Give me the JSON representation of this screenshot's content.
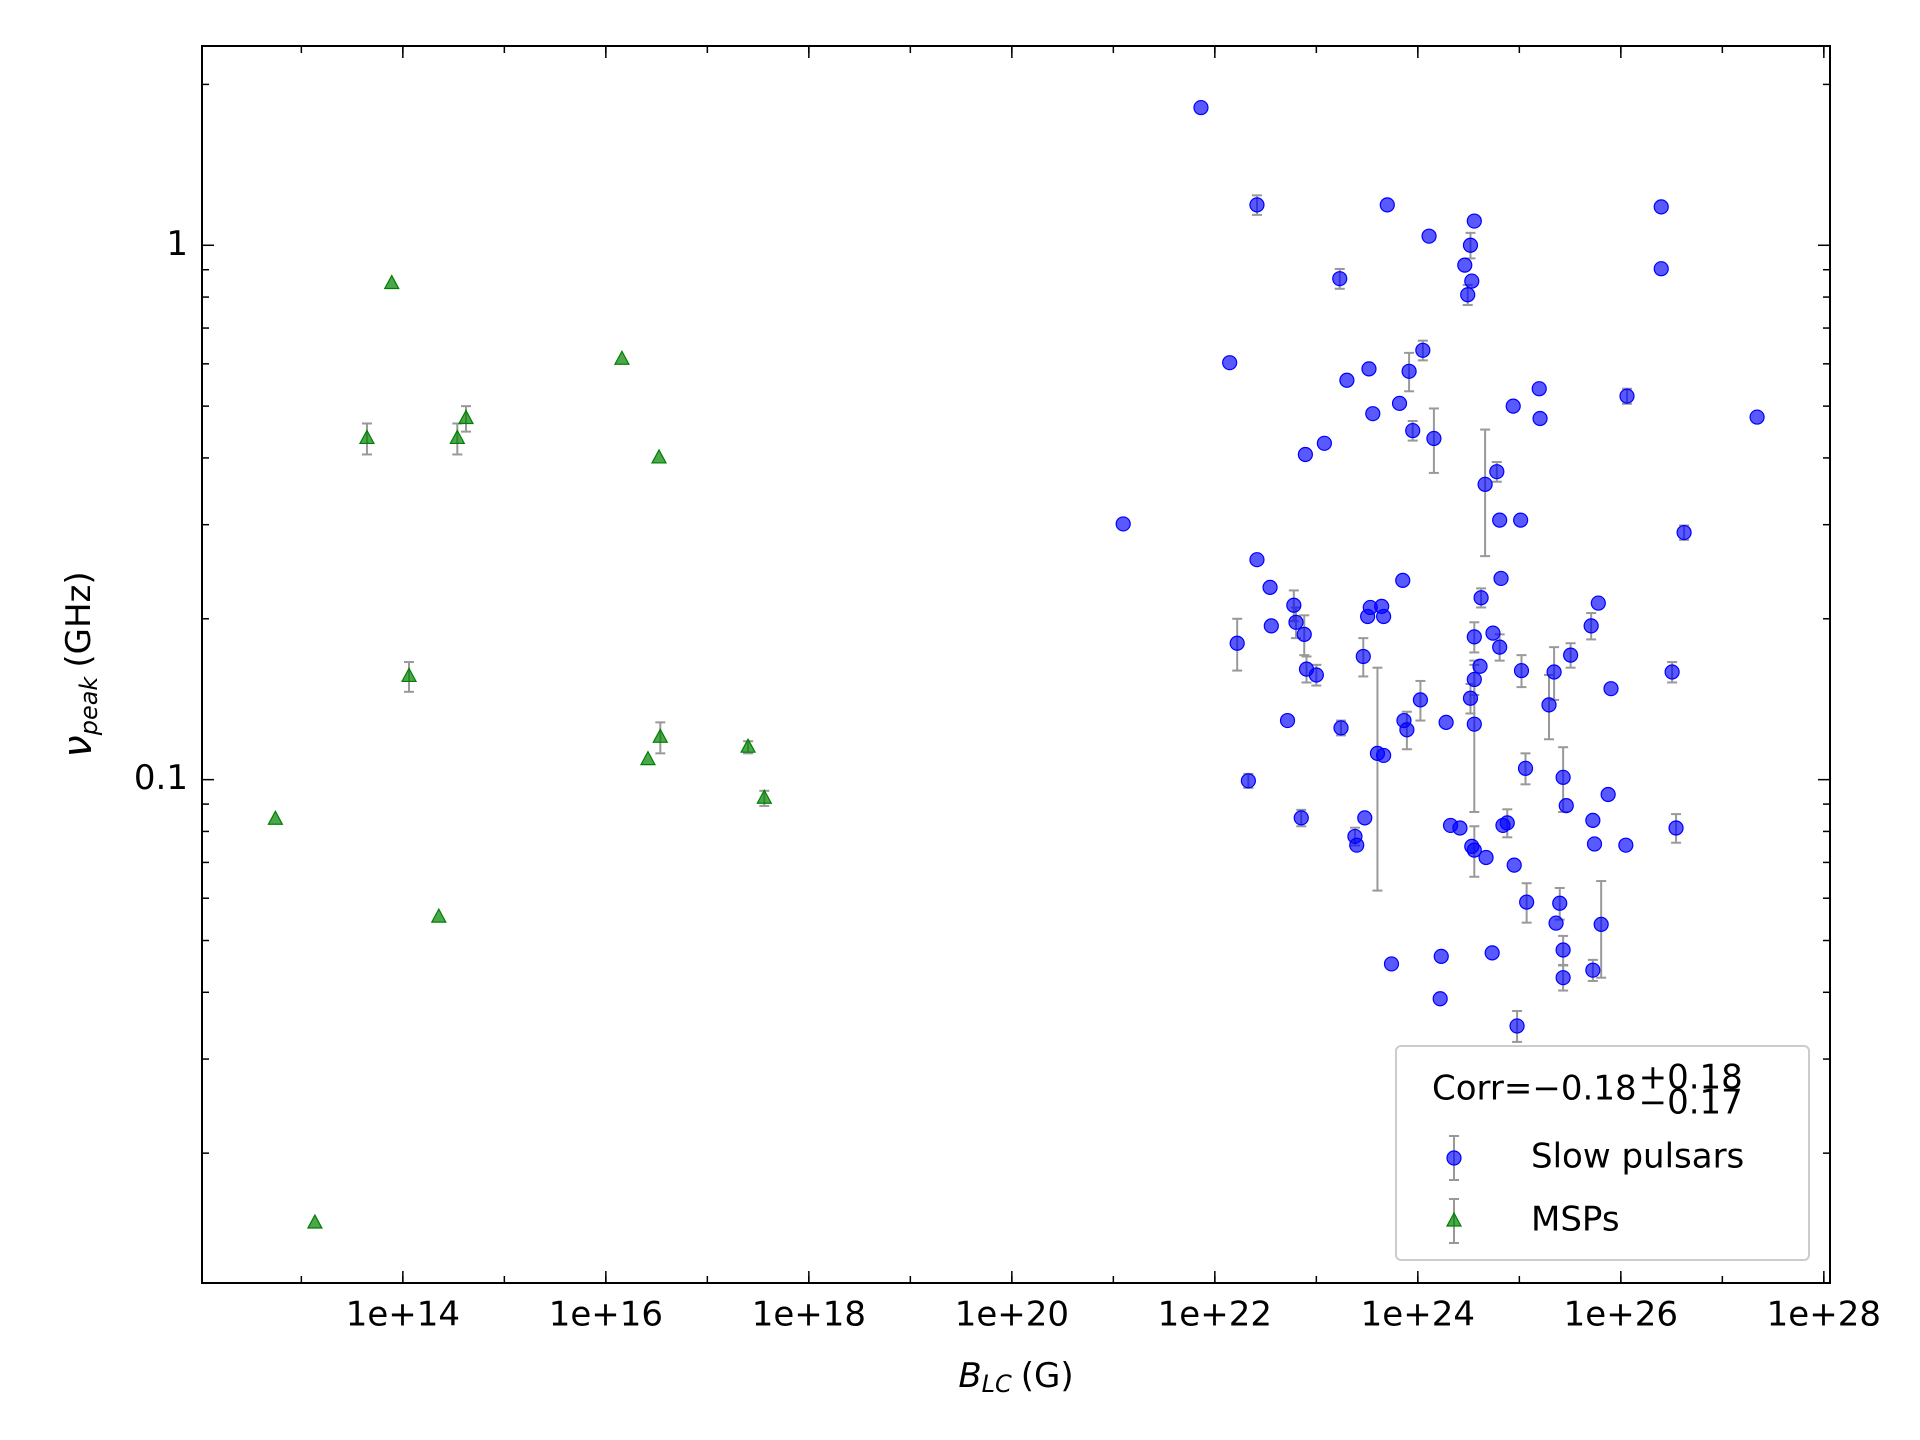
{
  "chart_data": {
    "type": "scatter",
    "xlabel": {
      "symbol": "B",
      "subscript": "LC",
      "unit": "(G)"
    },
    "ylabel": {
      "symbol": "ν",
      "subscript": "peak",
      "unit": "(GHz)"
    },
    "xscale": "log",
    "yscale": "log",
    "xlim": [
      1050000000000.0,
      1.15e+28
    ],
    "ylim": [
      0.01143,
      2.36
    ],
    "xticks": [
      {
        "value": 100000000000000.0,
        "label": "1e+14"
      },
      {
        "value": 1e+16,
        "label": "1e+16"
      },
      {
        "value": 1e+18,
        "label": "1e+18"
      },
      {
        "value": 1e+20,
        "label": "1e+20"
      },
      {
        "value": 1e+22,
        "label": "1e+22"
      },
      {
        "value": 1e+24,
        "label": "1e+24"
      },
      {
        "value": 1e+26,
        "label": "1e+26"
      },
      {
        "value": 1e+28,
        "label": "1e+28"
      }
    ],
    "yticks": [
      0.1,
      1
    ],
    "minor_ticks": true,
    "legend": "lower right",
    "error_color": "#999999",
    "annotation": {
      "text": "Corr=−0.18",
      "sup": "+0.18",
      "sub": "−0.17"
    },
    "series": [
      {
        "name": "Slow pulsars",
        "color": "#0000ff",
        "marker": "circle",
        "x": [
          1.25e+21,
          7.3e+21,
          1.4e+22,
          1.66e+22,
          2.14e+22,
          2.6e+22,
          2.6e+22,
          3.5e+22,
          3.6e+22,
          5.2e+22,
          6e+22,
          6.3e+22,
          7.1e+22,
          7.6e+22,
          7.8e+22,
          8e+22,
          1e+23,
          1.2e+23,
          1.7e+23,
          1.75e+23,
          2e+23,
          2.4e+23,
          2.5e+23,
          2.9e+23,
          3e+23,
          3.2e+23,
          3.3e+23,
          3.4e+23,
          3.6e+23,
          4e+23,
          4.4e+23,
          4.6e+23,
          4.6e+23,
          5e+23,
          5.5e+23,
          6.6e+23,
          7.1e+23,
          7.3e+23,
          7.8e+23,
          8.2e+23,
          8.9e+23,
          1.06e+24,
          1.12e+24,
          1.29e+24,
          1.44e+24,
          1.66e+24,
          1.7e+24,
          1.9e+24,
          2.1e+24,
          2.6e+24,
          2.9e+24,
          3.1e+24,
          3.3e+24,
          3.3e+24,
          3.4e+24,
          3.4e+24,
          3.6e+24,
          3.6e+24,
          3.6e+24,
          3.6e+24,
          3.6e+24,
          4.1e+24,
          4.2e+24,
          4.6e+24,
          4.7e+24,
          5.4e+24,
          5.5e+24,
          6e+24,
          6.4e+24,
          6.4e+24,
          6.6e+24,
          6.9e+24,
          7.6e+24,
          8.7e+24,
          8.9e+24,
          9.5e+24,
          1.03e+25,
          1.05e+25,
          1.15e+25,
          1.18e+25,
          1.57e+25,
          1.6e+25,
          1.96e+25,
          2.2e+25,
          2.3e+25,
          2.5e+25,
          2.7e+25,
          2.7e+25,
          2.7e+25,
          2.9e+25,
          3.2e+25,
          5.1e+25,
          5.3e+25,
          5.3e+25,
          5.5e+25,
          6e+25,
          6.4e+25,
          7.5e+25,
          8e+25,
          1.12e+26,
          1.15e+26,
          2.5e+26,
          2.5e+26,
          3.2e+26,
          3.5e+26,
          4.2e+26,
          2.2e+27
        ],
        "values": [
          0.301,
          1.81,
          0.603,
          0.18,
          0.0995,
          1.19,
          0.258,
          0.229,
          0.194,
          0.129,
          0.212,
          0.197,
          0.0848,
          0.187,
          0.406,
          0.161,
          0.157,
          0.426,
          0.866,
          0.125,
          0.559,
          0.0783,
          0.0754,
          0.17,
          0.0848,
          0.202,
          0.587,
          0.21,
          0.484,
          0.112,
          0.211,
          0.111,
          0.202,
          1.19,
          0.0452,
          0.506,
          0.236,
          0.129,
          0.124,
          0.581,
          0.45,
          0.141,
          0.636,
          1.04,
          0.435,
          0.0389,
          0.0467,
          0.128,
          0.0821,
          0.0812,
          0.918,
          0.808,
          1.0,
          0.142,
          0.857,
          0.075,
          1.11,
          0.185,
          0.154,
          0.127,
          0.0738,
          0.163,
          0.219,
          0.357,
          0.0715,
          0.0474,
          0.188,
          0.377,
          0.177,
          0.306,
          0.238,
          0.0821,
          0.083,
          0.5,
          0.0692,
          0.0346,
          0.306,
          0.16,
          0.105,
          0.059,
          0.539,
          0.474,
          0.138,
          0.159,
          0.0539,
          0.0587,
          0.048,
          0.0426,
          0.101,
          0.0894,
          0.171,
          0.194,
          0.0839,
          0.044,
          0.0758,
          0.214,
          0.0536,
          0.0938,
          0.148,
          0.0754,
          0.522,
          0.904,
          1.18,
          0.159,
          0.0812,
          0.29,
          0.477
        ],
        "errors": [
          null,
          null,
          null,
          0.02,
          0.003,
          0.05,
          null,
          null,
          null,
          null,
          0.014,
          0.013,
          0.003,
          0.016,
          null,
          0.009,
          0.007,
          null,
          0.037,
          0.004,
          null,
          0.003,
          null,
          0.014,
          null,
          null,
          null,
          null,
          null,
          0.05,
          null,
          null,
          null,
          null,
          null,
          null,
          null,
          null,
          0.01,
          0.048,
          0.019,
          0.012,
          0.027,
          null,
          0.06,
          null,
          null,
          null,
          null,
          null,
          null,
          0.035,
          0.055,
          0.009,
          null,
          null,
          null,
          0.012,
          0.01,
          0.04,
          0.008,
          null,
          0.009,
          0.095,
          null,
          null,
          null,
          0.016,
          0.01,
          null,
          null,
          null,
          0.005,
          null,
          null,
          0.0023,
          null,
          0.011,
          0.007,
          0.005,
          null,
          null,
          0.019,
          0.018,
          null,
          0.004,
          0.003,
          0.0023,
          0.014,
          null,
          0.009,
          0.011,
          null,
          0.002,
          null,
          null,
          0.011,
          null,
          null,
          null,
          0.017,
          null,
          null,
          0.007,
          0.005,
          0.009,
          null
        ]
      },
      {
        "name": "MSPs",
        "color": "#008000",
        "marker": "triangle",
        "x": [
          5550000000000.0,
          13600000000000.0,
          44300000000000.0,
          77700000000000.0,
          115000000000000.0,
          226000000000000.0,
          344000000000000.0,
          419000000000000.0,
          1.44e+16,
          2.6e+16,
          3.34e+16,
          3.44e+16,
          2.52e+17,
          3.64e+17
        ],
        "values": [
          0.0843,
          0.0148,
          0.435,
          0.848,
          0.156,
          0.0553,
          0.435,
          0.474,
          0.612,
          0.109,
          0.4,
          0.12,
          0.115,
          0.0923
        ],
        "errors": [
          null,
          null,
          0.029,
          null,
          0.01,
          null,
          0.029,
          0.026,
          null,
          null,
          null,
          0.008,
          0.003,
          0.003
        ]
      }
    ]
  }
}
